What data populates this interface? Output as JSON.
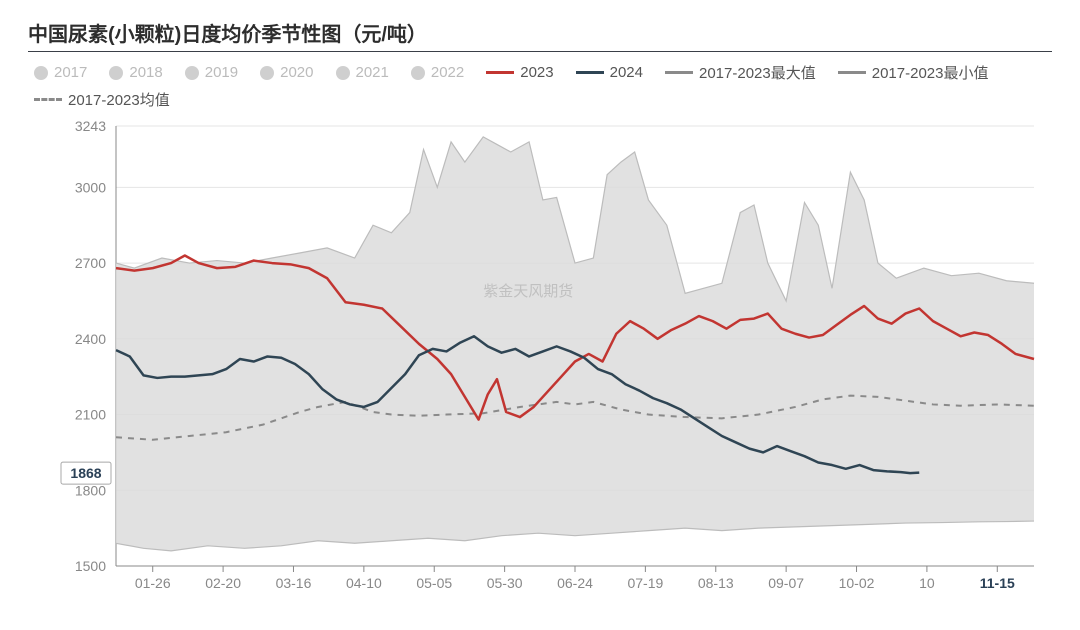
{
  "title": "中国尿素(小颗粒)日度均价季节性图（元/吨）",
  "watermark": "紫金天风期货",
  "chart": {
    "type": "line",
    "background_color": "#ffffff",
    "grid_color": "#e5e5e5",
    "yaxis": {
      "min": 1500,
      "max": 3243,
      "ticks": [
        1500,
        1800,
        2100,
        2400,
        2700,
        3000,
        3243
      ],
      "label_fontsize": 14,
      "label_color": "#888888"
    },
    "xaxis": {
      "ticks": [
        "01-26",
        "02-20",
        "03-16",
        "04-10",
        "05-05",
        "05-30",
        "06-24",
        "07-19",
        "08-13",
        "09-07",
        "10-02",
        "10",
        "11-15"
      ],
      "n": 13,
      "highlight_index": 12,
      "label_fontsize": 14,
      "label_color": "#888888"
    },
    "value_label": {
      "value": 1868,
      "y": 1868,
      "box_border": "#a8a8a8",
      "text_color": "#2a4056"
    },
    "legend": [
      {
        "label": "2017",
        "type": "dot",
        "color": "#cfcfcf",
        "active": false
      },
      {
        "label": "2018",
        "type": "dot",
        "color": "#cfcfcf",
        "active": false
      },
      {
        "label": "2019",
        "type": "dot",
        "color": "#cfcfcf",
        "active": false
      },
      {
        "label": "2020",
        "type": "dot",
        "color": "#cfcfcf",
        "active": false
      },
      {
        "label": "2021",
        "type": "dot",
        "color": "#cfcfcf",
        "active": false
      },
      {
        "label": "2022",
        "type": "dot",
        "color": "#cfcfcf",
        "active": false
      },
      {
        "label": "2023",
        "type": "line",
        "color": "#c23531",
        "active": true
      },
      {
        "label": "2024",
        "type": "line",
        "color": "#2f4554",
        "active": true
      },
      {
        "label": "2017-2023最大值",
        "type": "line",
        "color": "#8a8a8a",
        "active": true
      },
      {
        "label": "2017-2023最小值",
        "type": "line",
        "color": "#8a8a8a",
        "active": true
      },
      {
        "label": "2017-2023均值",
        "type": "dashed",
        "color": "#8a8a8a",
        "active": true
      }
    ],
    "band": {
      "fill": "#dcdcdc",
      "opacity": 0.85,
      "upper": [
        [
          0.0,
          2700
        ],
        [
          0.02,
          2680
        ],
        [
          0.05,
          2720
        ],
        [
          0.08,
          2700
        ],
        [
          0.11,
          2710
        ],
        [
          0.14,
          2700
        ],
        [
          0.17,
          2720
        ],
        [
          0.2,
          2740
        ],
        [
          0.23,
          2760
        ],
        [
          0.26,
          2720
        ],
        [
          0.28,
          2850
        ],
        [
          0.3,
          2820
        ],
        [
          0.32,
          2900
        ],
        [
          0.335,
          3150
        ],
        [
          0.35,
          3000
        ],
        [
          0.365,
          3180
        ],
        [
          0.38,
          3100
        ],
        [
          0.4,
          3200
        ],
        [
          0.415,
          3170
        ],
        [
          0.43,
          3140
        ],
        [
          0.45,
          3180
        ],
        [
          0.465,
          2950
        ],
        [
          0.48,
          2960
        ],
        [
          0.5,
          2700
        ],
        [
          0.52,
          2720
        ],
        [
          0.535,
          3050
        ],
        [
          0.55,
          3100
        ],
        [
          0.565,
          3140
        ],
        [
          0.58,
          2950
        ],
        [
          0.6,
          2850
        ],
        [
          0.62,
          2580
        ],
        [
          0.64,
          2600
        ],
        [
          0.66,
          2620
        ],
        [
          0.68,
          2900
        ],
        [
          0.695,
          2930
        ],
        [
          0.71,
          2700
        ],
        [
          0.73,
          2550
        ],
        [
          0.75,
          2940
        ],
        [
          0.765,
          2850
        ],
        [
          0.78,
          2600
        ],
        [
          0.8,
          3060
        ],
        [
          0.815,
          2950
        ],
        [
          0.83,
          2700
        ],
        [
          0.85,
          2640
        ],
        [
          0.88,
          2680
        ],
        [
          0.91,
          2650
        ],
        [
          0.94,
          2660
        ],
        [
          0.97,
          2630
        ],
        [
          1.0,
          2620
        ]
      ],
      "lower": [
        [
          0.0,
          1590
        ],
        [
          0.03,
          1570
        ],
        [
          0.06,
          1560
        ],
        [
          0.1,
          1580
        ],
        [
          0.14,
          1570
        ],
        [
          0.18,
          1580
        ],
        [
          0.22,
          1600
        ],
        [
          0.26,
          1590
        ],
        [
          0.3,
          1600
        ],
        [
          0.34,
          1610
        ],
        [
          0.38,
          1600
        ],
        [
          0.42,
          1620
        ],
        [
          0.46,
          1630
        ],
        [
          0.5,
          1620
        ],
        [
          0.54,
          1630
        ],
        [
          0.58,
          1640
        ],
        [
          0.62,
          1650
        ],
        [
          0.66,
          1640
        ],
        [
          0.7,
          1650
        ],
        [
          0.74,
          1655
        ],
        [
          0.78,
          1660
        ],
        [
          0.82,
          1665
        ],
        [
          0.86,
          1670
        ],
        [
          0.9,
          1672
        ],
        [
          0.94,
          1675
        ],
        [
          0.97,
          1676
        ],
        [
          1.0,
          1678
        ]
      ]
    },
    "series": {
      "mean": {
        "color": "#8a8a8a",
        "width": 2,
        "dash": "6 6",
        "points": [
          [
            0.0,
            2010
          ],
          [
            0.04,
            2000
          ],
          [
            0.08,
            2015
          ],
          [
            0.12,
            2030
          ],
          [
            0.16,
            2060
          ],
          [
            0.2,
            2110
          ],
          [
            0.22,
            2130
          ],
          [
            0.25,
            2150
          ],
          [
            0.28,
            2110
          ],
          [
            0.3,
            2100
          ],
          [
            0.33,
            2095
          ],
          [
            0.36,
            2100
          ],
          [
            0.4,
            2105
          ],
          [
            0.44,
            2130
          ],
          [
            0.48,
            2150
          ],
          [
            0.5,
            2140
          ],
          [
            0.52,
            2150
          ],
          [
            0.55,
            2120
          ],
          [
            0.58,
            2100
          ],
          [
            0.62,
            2090
          ],
          [
            0.66,
            2085
          ],
          [
            0.7,
            2100
          ],
          [
            0.74,
            2130
          ],
          [
            0.77,
            2160
          ],
          [
            0.8,
            2175
          ],
          [
            0.83,
            2170
          ],
          [
            0.86,
            2155
          ],
          [
            0.89,
            2140
          ],
          [
            0.92,
            2135
          ],
          [
            0.96,
            2140
          ],
          [
            1.0,
            2135
          ]
        ]
      },
      "y2023": {
        "color": "#c23531",
        "width": 2.5,
        "points": [
          [
            0.0,
            2680
          ],
          [
            0.02,
            2670
          ],
          [
            0.04,
            2680
          ],
          [
            0.06,
            2700
          ],
          [
            0.075,
            2730
          ],
          [
            0.09,
            2700
          ],
          [
            0.11,
            2680
          ],
          [
            0.13,
            2685
          ],
          [
            0.15,
            2710
          ],
          [
            0.17,
            2700
          ],
          [
            0.19,
            2695
          ],
          [
            0.21,
            2680
          ],
          [
            0.23,
            2640
          ],
          [
            0.25,
            2545
          ],
          [
            0.27,
            2535
          ],
          [
            0.29,
            2520
          ],
          [
            0.31,
            2450
          ],
          [
            0.33,
            2380
          ],
          [
            0.35,
            2320
          ],
          [
            0.365,
            2260
          ],
          [
            0.38,
            2170
          ],
          [
            0.395,
            2080
          ],
          [
            0.405,
            2180
          ],
          [
            0.415,
            2240
          ],
          [
            0.425,
            2110
          ],
          [
            0.44,
            2090
          ],
          [
            0.455,
            2130
          ],
          [
            0.47,
            2190
          ],
          [
            0.485,
            2250
          ],
          [
            0.5,
            2310
          ],
          [
            0.515,
            2340
          ],
          [
            0.53,
            2310
          ],
          [
            0.545,
            2420
          ],
          [
            0.56,
            2470
          ],
          [
            0.575,
            2440
          ],
          [
            0.59,
            2400
          ],
          [
            0.605,
            2435
          ],
          [
            0.62,
            2460
          ],
          [
            0.635,
            2490
          ],
          [
            0.65,
            2470
          ],
          [
            0.665,
            2440
          ],
          [
            0.68,
            2475
          ],
          [
            0.695,
            2480
          ],
          [
            0.71,
            2500
          ],
          [
            0.725,
            2440
          ],
          [
            0.74,
            2420
          ],
          [
            0.755,
            2405
          ],
          [
            0.77,
            2415
          ],
          [
            0.785,
            2455
          ],
          [
            0.8,
            2495
          ],
          [
            0.815,
            2530
          ],
          [
            0.83,
            2480
          ],
          [
            0.845,
            2460
          ],
          [
            0.86,
            2500
          ],
          [
            0.875,
            2520
          ],
          [
            0.89,
            2470
          ],
          [
            0.905,
            2440
          ],
          [
            0.92,
            2410
          ],
          [
            0.935,
            2425
          ],
          [
            0.95,
            2415
          ],
          [
            0.965,
            2380
          ],
          [
            0.98,
            2340
          ],
          [
            1.0,
            2320
          ]
        ]
      },
      "y2024": {
        "color": "#2f4554",
        "width": 2.5,
        "points": [
          [
            0.0,
            2355
          ],
          [
            0.015,
            2330
          ],
          [
            0.03,
            2255
          ],
          [
            0.045,
            2245
          ],
          [
            0.06,
            2250
          ],
          [
            0.075,
            2250
          ],
          [
            0.09,
            2255
          ],
          [
            0.105,
            2260
          ],
          [
            0.12,
            2280
          ],
          [
            0.135,
            2320
          ],
          [
            0.15,
            2310
          ],
          [
            0.165,
            2330
          ],
          [
            0.18,
            2325
          ],
          [
            0.195,
            2300
          ],
          [
            0.21,
            2260
          ],
          [
            0.225,
            2200
          ],
          [
            0.24,
            2160
          ],
          [
            0.255,
            2140
          ],
          [
            0.27,
            2130
          ],
          [
            0.285,
            2150
          ],
          [
            0.3,
            2205
          ],
          [
            0.315,
            2260
          ],
          [
            0.33,
            2335
          ],
          [
            0.345,
            2360
          ],
          [
            0.36,
            2350
          ],
          [
            0.375,
            2385
          ],
          [
            0.39,
            2410
          ],
          [
            0.405,
            2370
          ],
          [
            0.42,
            2345
          ],
          [
            0.435,
            2360
          ],
          [
            0.45,
            2330
          ],
          [
            0.465,
            2350
          ],
          [
            0.48,
            2370
          ],
          [
            0.495,
            2350
          ],
          [
            0.51,
            2325
          ],
          [
            0.525,
            2280
          ],
          [
            0.54,
            2260
          ],
          [
            0.555,
            2220
          ],
          [
            0.57,
            2195
          ],
          [
            0.585,
            2165
          ],
          [
            0.6,
            2145
          ],
          [
            0.615,
            2120
          ],
          [
            0.63,
            2085
          ],
          [
            0.645,
            2050
          ],
          [
            0.66,
            2015
          ],
          [
            0.675,
            1990
          ],
          [
            0.69,
            1965
          ],
          [
            0.705,
            1950
          ],
          [
            0.72,
            1975
          ],
          [
            0.735,
            1955
          ],
          [
            0.75,
            1935
          ],
          [
            0.765,
            1910
          ],
          [
            0.78,
            1900
          ],
          [
            0.795,
            1885
          ],
          [
            0.81,
            1900
          ],
          [
            0.825,
            1880
          ],
          [
            0.84,
            1875
          ],
          [
            0.855,
            1872
          ],
          [
            0.865,
            1868
          ],
          [
            0.875,
            1870
          ]
        ]
      }
    }
  }
}
